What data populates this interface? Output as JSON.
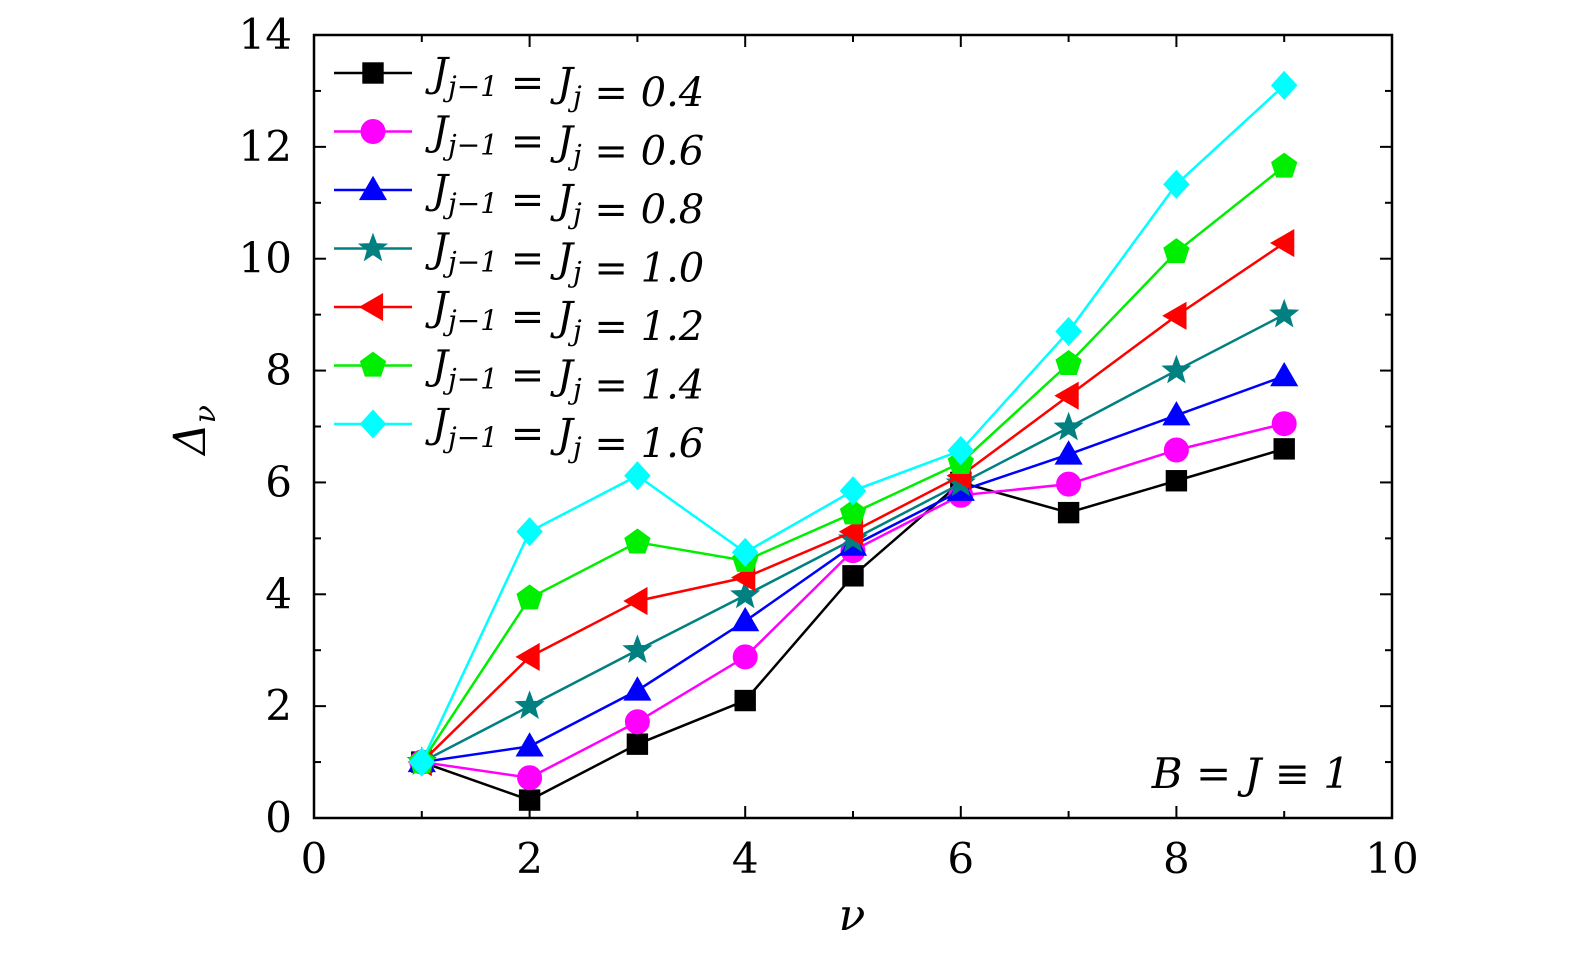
{
  "chart_data": {
    "type": "line",
    "xlabel": "ν",
    "ylabel": "Δ_ν",
    "xlim": [
      0,
      10
    ],
    "ylim": [
      0,
      14
    ],
    "x_ticks": [
      "0",
      "2",
      "4",
      "6",
      "8",
      "10"
    ],
    "y_ticks": [
      "0",
      "2",
      "4",
      "6",
      "8",
      "10",
      "12",
      "14"
    ],
    "legend_position": "top-left",
    "annotation": "B = J ≡ 1",
    "x": [
      1,
      2,
      3,
      4,
      5,
      6,
      7,
      8,
      9
    ],
    "series": [
      {
        "name": "J_{j−1} = J_j = 0.4",
        "color": "#000000",
        "marker": "square",
        "values": [
          1.0,
          0.32,
          1.32,
          2.1,
          4.33,
          6.0,
          5.46,
          6.03,
          6.6
        ]
      },
      {
        "name": "J_{j−1} = J_j = 0.6",
        "color": "#ff00ff",
        "marker": "circle",
        "values": [
          1.0,
          0.72,
          1.72,
          2.88,
          4.78,
          5.77,
          5.97,
          6.58,
          7.05
        ]
      },
      {
        "name": "J_{j−1} = J_j = 0.8",
        "color": "#0000ff",
        "marker": "triangle-up",
        "values": [
          1.0,
          1.28,
          2.28,
          3.52,
          4.87,
          5.85,
          6.5,
          7.2,
          7.9
        ]
      },
      {
        "name": "J_{j−1} = J_j = 1.0",
        "color": "#008080",
        "marker": "star",
        "values": [
          1.0,
          2.0,
          3.0,
          3.98,
          4.98,
          5.98,
          6.98,
          8.0,
          9.0
        ]
      },
      {
        "name": "J_{j−1} = J_j = 1.2",
        "color": "#ff0000",
        "marker": "triangle-left",
        "values": [
          1.0,
          2.88,
          3.88,
          4.3,
          5.12,
          6.12,
          7.55,
          8.98,
          10.28
        ]
      },
      {
        "name": "J_{j−1} = J_j = 1.4",
        "color": "#00ee00",
        "marker": "pentagon",
        "values": [
          1.0,
          3.93,
          4.93,
          4.6,
          5.45,
          6.35,
          8.12,
          10.12,
          11.65
        ]
      },
      {
        "name": "J_{j−1} = J_j = 1.6",
        "color": "#00ffff",
        "marker": "diamond",
        "values": [
          1.0,
          5.12,
          6.12,
          4.75,
          5.85,
          6.57,
          8.7,
          11.33,
          13.1
        ]
      }
    ]
  }
}
